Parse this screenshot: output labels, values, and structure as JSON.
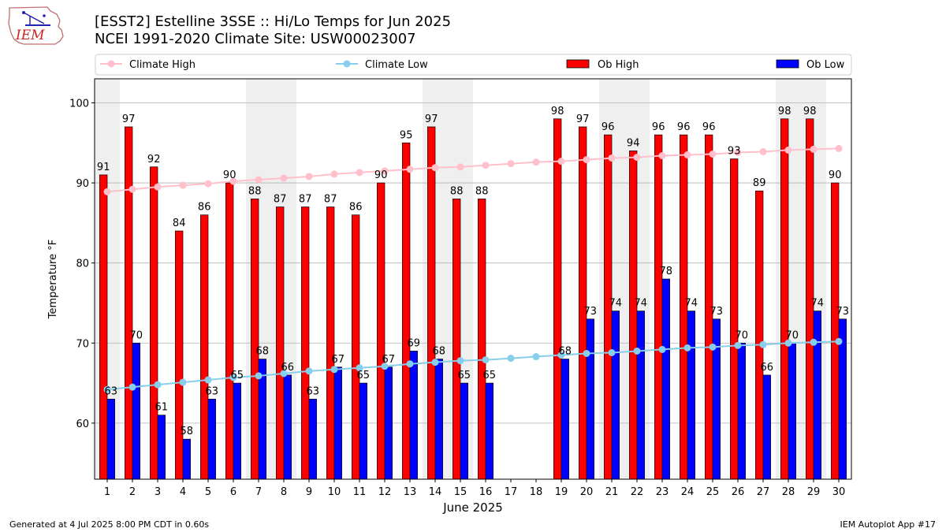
{
  "header": {
    "title_line1": "[ESST2] Estelline 3SSE :: Hi/Lo Temps for Jun 2025",
    "title_line2": "NCEI 1991-2020 Climate Site: USW00023007",
    "logo_text": "IEM"
  },
  "footer": {
    "generated": "Generated at 4 Jul 2025 8:00 PM CDT in 0.60s",
    "app": "IEM Autoplot App #17"
  },
  "colors": {
    "ob_high": "#ff0000",
    "ob_low": "#0000ff",
    "climate_high": "#ffc0cb",
    "climate_low": "#87ceeb",
    "weekend_band": "#efefef",
    "grid": "#b0b0b0"
  },
  "chart_data": {
    "type": "bar",
    "xlabel": "June 2025",
    "ylabel": "Temperature °F",
    "ylim": [
      53,
      103
    ],
    "yticks": [
      60,
      70,
      80,
      90,
      100
    ],
    "grid": "horizontal",
    "legend_placement": "top",
    "x": [
      1,
      2,
      3,
      4,
      5,
      6,
      7,
      8,
      9,
      10,
      11,
      12,
      13,
      14,
      15,
      16,
      17,
      18,
      19,
      20,
      21,
      22,
      23,
      24,
      25,
      26,
      27,
      28,
      29,
      30
    ],
    "shaded_days": [
      1,
      7,
      8,
      14,
      15,
      21,
      22,
      28,
      29
    ],
    "series": [
      {
        "name": "Ob High",
        "kind": "bar",
        "values": [
          91,
          97,
          92,
          84,
          86,
          90,
          88,
          87,
          87,
          87,
          86,
          90,
          95,
          97,
          88,
          88,
          null,
          null,
          98,
          97,
          96,
          94,
          96,
          96,
          96,
          93,
          89,
          98,
          98,
          90
        ]
      },
      {
        "name": "Ob Low",
        "kind": "bar",
        "values": [
          63,
          70,
          61,
          58,
          63,
          65,
          68,
          66,
          63,
          67,
          65,
          67,
          69,
          68,
          65,
          65,
          null,
          null,
          68,
          73,
          74,
          74,
          78,
          74,
          73,
          70,
          66,
          70,
          74,
          73
        ]
      },
      {
        "name": "Climate High",
        "kind": "line",
        "values": [
          88.9,
          89.2,
          89.5,
          89.7,
          89.9,
          90.2,
          90.4,
          90.6,
          90.8,
          91.1,
          91.3,
          91.5,
          91.7,
          91.9,
          92.0,
          92.2,
          92.4,
          92.6,
          92.7,
          92.9,
          93.1,
          93.2,
          93.4,
          93.5,
          93.6,
          93.8,
          93.9,
          94.1,
          94.2,
          94.3
        ]
      },
      {
        "name": "Climate Low",
        "kind": "line",
        "values": [
          64.2,
          64.5,
          64.8,
          65.1,
          65.4,
          65.7,
          65.9,
          66.2,
          66.5,
          66.7,
          66.9,
          67.1,
          67.4,
          67.6,
          67.8,
          67.9,
          68.1,
          68.3,
          68.5,
          68.7,
          68.8,
          69.0,
          69.2,
          69.4,
          69.5,
          69.7,
          69.8,
          70.0,
          70.1,
          70.2
        ]
      }
    ]
  }
}
